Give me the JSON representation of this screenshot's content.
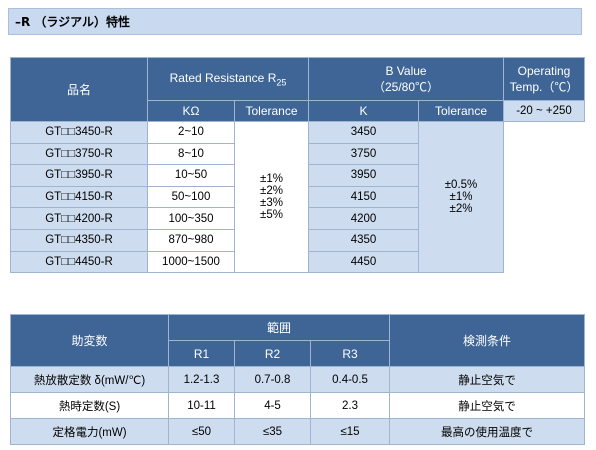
{
  "header": {
    "title": "–R （ラジアル）特性"
  },
  "table1": {
    "headers": {
      "name": "品名",
      "resistance": "Rated Resistance R",
      "resistance_sub": "25",
      "bvalue": "B Value",
      "bvalue_cond": "（25/80℃）",
      "temp": "Operating Temp.（℃）",
      "kohm": "KΩ",
      "tol1": "Tolerance",
      "k": "K",
      "tol2": "Tolerance"
    },
    "rows": [
      [
        "GT□□3450-R",
        "2~10",
        "3450"
      ],
      [
        "GT□□3750-R",
        "8~10",
        "3750"
      ],
      [
        "GT□□3950-R",
        "10~50",
        "3950"
      ],
      [
        "GT□□4150-R",
        "50~100",
        "4150"
      ],
      [
        "GT□□4200-R",
        "100~350",
        "4200"
      ],
      [
        "GT□□4350-R",
        "870~980",
        "4350"
      ],
      [
        "GT□□4450-R",
        "1000~1500",
        "4450"
      ]
    ],
    "res_tolerance": [
      "±1%",
      "±2%",
      "±3%",
      "±5%"
    ],
    "b_tolerance": [
      "±0.5%",
      "±1%",
      "±2%"
    ],
    "temp_range": "-20 ~ +250"
  },
  "table2": {
    "headers": {
      "param": "助変数",
      "range": "範囲",
      "condition": "検測条件",
      "r1": "R1",
      "r2": "R2",
      "r3": "R3"
    },
    "rows": [
      [
        "熱放散定数 δ(mW/℃)",
        "1.2-1.3",
        "0.7-0.8",
        "0.4-0.5",
        "静止空気で"
      ],
      [
        "熱時定数(S)",
        "10-11",
        "4-5",
        "2.3",
        "静止空気で"
      ],
      [
        "定格電力(mW)",
        "≤50",
        "≤35",
        "≤15",
        "最高の使用温度で"
      ]
    ]
  }
}
